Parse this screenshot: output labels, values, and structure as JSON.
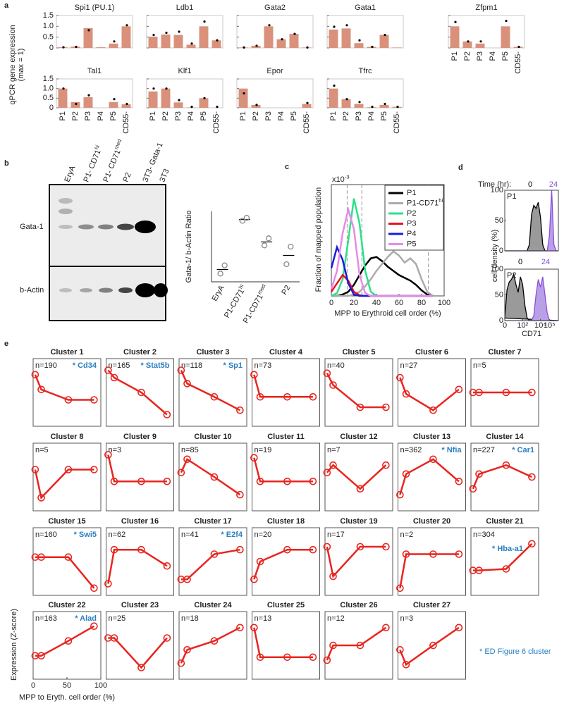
{
  "panel_labels": [
    "a",
    "b",
    "c",
    "d",
    "e"
  ],
  "blot": {
    "lanes": [
      "EryA",
      {
        "text": "P1- CD71",
        "sup": "hi"
      },
      {
        "text": "P1- CD71",
        "sup": "med"
      },
      "P2",
      "3T3- Gata-1",
      "3T3"
    ],
    "rows": [
      "Gata-1",
      "b-Actin"
    ]
  },
  "chart_data": [
    {
      "type": "bar",
      "ylabel": [
        "qPCR gene expression",
        "(max = 1)"
      ],
      "color": "#d9917c",
      "point_color": "#000000",
      "categories": [
        "P1",
        "P2",
        "P3",
        "P4",
        "P5",
        "CD55-"
      ],
      "ylim": [
        0,
        1.5
      ],
      "yticks": [
        0,
        0.5,
        {
          "value": 1,
          "label": "1.0"
        },
        1.5
      ],
      "panels": [
        {
          "title": "Spi1 (PU.1)",
          "values": [
            0.03,
            0.06,
            0.92,
            0.03,
            0.2,
            1.0
          ],
          "points": [
            0.03,
            0.05,
            0.82,
            null,
            0.3,
            1.05
          ]
        },
        {
          "title": "Ldb1",
          "values": [
            0.52,
            0.62,
            0.6,
            0.15,
            1.0,
            0.35
          ],
          "points": [
            0.6,
            0.7,
            0.75,
            0.2,
            1.22,
            0.35
          ]
        },
        {
          "title": "Gata2",
          "values": [
            0.02,
            0.1,
            1.0,
            0.4,
            0.65,
            0.02
          ],
          "points": [
            0.02,
            0.1,
            1.05,
            0.4,
            0.65,
            0.02
          ]
        },
        {
          "title": "Gata1",
          "values": [
            0.85,
            0.9,
            0.22,
            0.05,
            0.6,
            0.02
          ],
          "points": [
            0.98,
            1.05,
            0.35,
            0.05,
            0.6,
            null
          ]
        },
        {
          "title": "Zfpm1",
          "values": [
            1.0,
            0.3,
            0.2,
            0,
            1.0,
            0.05
          ],
          "points": [
            1.2,
            0.3,
            0.3,
            null,
            1.25,
            0.05
          ]
        },
        {
          "title": "Tal1",
          "values": [
            1.0,
            0.3,
            0.55,
            0,
            0.3,
            0.18
          ],
          "points": [
            1.0,
            0.2,
            0.65,
            null,
            0.45,
            0.2
          ]
        },
        {
          "title": "Klf1",
          "values": [
            0.85,
            1.0,
            0.28,
            0.02,
            0.5,
            0
          ],
          "points": [
            1.0,
            1.0,
            0.4,
            0.05,
            0.5,
            0.05
          ]
        },
        {
          "title": "Epor",
          "values": [
            1.0,
            0.15,
            0,
            0,
            0,
            0.2
          ],
          "points": [
            0.75,
            0.15,
            null,
            null,
            null,
            0.25
          ]
        },
        {
          "title": "Tfrc",
          "values": [
            1.0,
            0.45,
            0.2,
            0.03,
            0.15,
            0.05
          ],
          "points": [
            1.15,
            0.45,
            0.3,
            0.05,
            0.2,
            0.05
          ]
        }
      ]
    },
    {
      "type": "scatter",
      "ylabel": "Gata-1/ b-Actin Ratio",
      "categories": [
        "EryA",
        {
          "text": "P1-CD71",
          "sup": "hi"
        },
        {
          "text": "P1-CD71",
          "sup": "med"
        },
        "P2"
      ],
      "values": [
        0.55,
        4.8,
        2.9,
        1.75
      ],
      "points": [
        [
          0.2,
          0.9
        ],
        [
          4.7,
          4.95
        ],
        [
          2.6,
          3.2
        ],
        [
          1.0,
          2.5
        ]
      ],
      "ylim": [
        -0.5,
        5.5
      ],
      "color": "#888888"
    },
    {
      "type": "line",
      "ylabel": "Fraction of mapped population",
      "xlabel": "MPP to Erythroid cell order (%)",
      "y_multiplier": {
        "text": "x10",
        "sup": "-3"
      },
      "x": [
        0,
        5,
        10,
        15,
        20,
        25,
        30,
        35,
        40,
        45,
        50,
        55,
        60,
        65,
        70,
        75,
        80,
        85,
        90
      ],
      "xlim": [
        0,
        100
      ],
      "xticks": [
        0,
        20,
        40,
        60,
        80,
        100
      ],
      "ylim": [
        0,
        8
      ],
      "vlines": [
        14,
        27,
        86
      ],
      "series": [
        {
          "name": "P1",
          "color": "#000000",
          "values": [
            0,
            0,
            0.1,
            0.3,
            0.8,
            1.5,
            2.2,
            2.7,
            2.8,
            2.5,
            2.1,
            1.8,
            1.5,
            1.3,
            1.1,
            0.8,
            0.4,
            0.1,
            0
          ]
        },
        {
          "name": {
            "text": "P1-CD71",
            "sup": "hi"
          },
          "color": "#aaaaaa",
          "values": [
            0,
            0,
            0,
            0,
            0.1,
            0.3,
            0.7,
            1.2,
            1.8,
            2.3,
            2.8,
            3.2,
            2.9,
            2.4,
            2.7,
            2.3,
            1.2,
            0.3,
            0
          ]
        },
        {
          "name": "P2",
          "color": "#2de08a",
          "values": [
            0,
            0.2,
            1.2,
            4,
            7,
            5.2,
            1.8,
            0.3,
            0,
            0,
            0,
            0,
            0,
            0,
            0,
            0,
            0,
            0,
            0
          ]
        },
        {
          "name": "P3",
          "color": "#e8141e",
          "values": [
            0.3,
            0.9,
            1.5,
            1.1,
            0.3,
            0.05,
            0,
            0,
            0,
            0,
            0,
            0,
            0,
            0,
            0,
            0,
            0,
            0,
            0
          ]
        },
        {
          "name": "P4",
          "color": "#1a1ae0",
          "values": [
            2,
            3.5,
            2.6,
            0.9,
            0.1,
            0,
            0,
            0,
            0,
            0,
            0,
            0,
            0,
            0,
            0,
            0,
            0,
            0,
            0
          ]
        },
        {
          "name": "P5",
          "color": "#e68be6",
          "values": [
            0.5,
            1.8,
            4.5,
            6.2,
            4.8,
            1.5,
            0.2,
            0,
            0,
            0,
            0,
            0,
            0,
            0,
            0,
            0,
            0,
            0,
            0
          ]
        }
      ]
    },
    {
      "type": "area",
      "legend_title": "Time (hr):",
      "ylabel": "cell density (%)",
      "xlabel": "CD71",
      "x": [
        0,
        0.25,
        0.5,
        0.75,
        1,
        1.25,
        1.5,
        1.75,
        2,
        2.25,
        2.5,
        2.75,
        3,
        3.25,
        3.5,
        3.75,
        4,
        4.25,
        4.5,
        4.75,
        5,
        5.25,
        5.5,
        5.75,
        6
      ],
      "xlim": [
        0,
        6
      ],
      "xticks": [
        {
          "value": 0,
          "label": "0"
        },
        {
          "value": 2,
          "label": "10²"
        },
        {
          "value": 4,
          "label": "10⁴"
        },
        {
          "value": 5,
          "label": "10⁵"
        }
      ],
      "ylim": [
        0,
        100
      ],
      "yticks": [
        0,
        50,
        100
      ],
      "series": [
        {
          "name": "0",
          "color": "#000000",
          "fill": "#9a9a9a"
        },
        {
          "name": "24",
          "color": "#8a4fd8",
          "fill": "#b9a0e6"
        }
      ],
      "panels": [
        {
          "label": "P1",
          "values": [
            [
              0,
              0,
              0,
              0,
              0,
              0,
              0,
              0,
              0,
              0,
              0,
              10,
              60,
              75,
              70,
              80,
              55,
              10,
              0,
              0,
              0,
              0,
              0,
              0,
              0
            ],
            [
              0,
              0,
              0,
              0,
              0,
              0,
              0,
              0,
              0,
              0,
              0,
              0,
              0,
              0,
              0,
              0,
              0,
              0,
              0,
              0,
              25,
              100,
              10,
              0,
              0
            ]
          ]
        },
        {
          "label": "P2",
          "values": [
            [
              5,
              60,
              75,
              80,
              90,
              70,
              55,
              85,
              70,
              30,
              5,
              0,
              0,
              0,
              0,
              0,
              0,
              0,
              0,
              0,
              0,
              0,
              0,
              0,
              0
            ],
            [
              0,
              0,
              0,
              0,
              0,
              0,
              0,
              0,
              0,
              0,
              0,
              0,
              0,
              10,
              50,
              80,
              65,
              85,
              50,
              15,
              0,
              0,
              0,
              0,
              0
            ]
          ]
        }
      ]
    },
    {
      "type": "line",
      "ylabel": "Expression (Z-score)",
      "xlabel": "MPP to Eryth. cell order (%)",
      "note": "* ED Figure 6 cluster",
      "color": "#e8251f",
      "gene_color": "#2a7fc0",
      "x": [
        3,
        12,
        52,
        90
      ],
      "xlim": [
        0,
        100
      ],
      "xticks": [
        0,
        50,
        100
      ],
      "ylim": [
        -2,
        2
      ],
      "panels": [
        {
          "title": "Cluster 1",
          "n": "n=190",
          "gene": "* Cd34",
          "values": [
            1.2,
            0.2,
            -0.5,
            -0.5
          ]
        },
        {
          "title": "Cluster 2",
          "n": "n=165",
          "gene": "* Stat5b",
          "values": [
            1.5,
            1.0,
            0.0,
            -1.5
          ]
        },
        {
          "title": "Cluster 3",
          "n": "n=118",
          "gene": "* Sp1",
          "values": [
            1.5,
            0.6,
            -0.3,
            -1.2
          ]
        },
        {
          "title": "Cluster 4",
          "n": "n=73",
          "values": [
            1.2,
            -0.3,
            -0.3,
            -0.3
          ]
        },
        {
          "title": "Cluster 5",
          "n": "n=40",
          "values": [
            1.3,
            0.5,
            -1.0,
            -1.0
          ]
        },
        {
          "title": "Cluster 6",
          "n": "n=27",
          "values": [
            1.0,
            -0.1,
            -1.2,
            0.2
          ]
        },
        {
          "title": "Cluster 7",
          "n": "n=5",
          "values": [
            0,
            0,
            0,
            0
          ]
        },
        {
          "title": "Cluster 8",
          "n": "n=5",
          "values": [
            0.5,
            -1.4,
            0.5,
            0.5
          ]
        },
        {
          "title": "Cluster 9",
          "n": "n=3",
          "values": [
            1.5,
            -0.3,
            -0.3,
            -0.3
          ]
        },
        {
          "title": "Cluster 10",
          "n": "n=85",
          "values": [
            0.3,
            1.2,
            0.0,
            -1.2
          ]
        },
        {
          "title": "Cluster 11",
          "n": "n=19",
          "values": [
            1.3,
            -0.3,
            -0.3,
            -0.3
          ]
        },
        {
          "title": "Cluster 12",
          "n": "n=7",
          "values": [
            0.3,
            0.8,
            -0.8,
            0.8
          ]
        },
        {
          "title": "Cluster 13",
          "n": "n=362",
          "gene": "* Nfia",
          "values": [
            -1.2,
            0.2,
            1.2,
            -0.3
          ]
        },
        {
          "title": "Cluster 14",
          "n": "n=227",
          "gene": "* Car1",
          "values": [
            -0.8,
            0.2,
            0.8,
            0
          ]
        },
        {
          "title": "Cluster 15",
          "n": "n=160",
          "gene": "* Swi5",
          "values": [
            0.3,
            0.3,
            0.3,
            -1.8
          ]
        },
        {
          "title": "Cluster 16",
          "n": "n=62",
          "values": [
            -1.5,
            0.8,
            0.8,
            -0.3
          ]
        },
        {
          "title": "Cluster 17",
          "n": "n=41",
          "gene": "* E2f4",
          "values": [
            -1.2,
            -1.2,
            0.5,
            0.8
          ]
        },
        {
          "title": "Cluster 18",
          "n": "n=20",
          "values": [
            -1.2,
            0.0,
            0.8,
            0.8
          ]
        },
        {
          "title": "Cluster 19",
          "n": "n=17",
          "values": [
            1.0,
            -1.0,
            1.0,
            1.0
          ]
        },
        {
          "title": "Cluster 20",
          "n": "n=2",
          "values": [
            -1.8,
            0.5,
            0.5,
            0.5
          ]
        },
        {
          "title": "Cluster 21",
          "n": "n=304",
          "gene": "* Hba-a1",
          "values": [
            -0.6,
            -0.6,
            -0.5,
            1.2
          ]
        },
        {
          "title": "Cluster 22",
          "n": "n=163",
          "gene": "* Alad",
          "values": [
            -0.7,
            -0.7,
            0.3,
            1.3
          ]
        },
        {
          "title": "Cluster 23",
          "n": "n=25",
          "values": [
            0.5,
            0.5,
            -1.5,
            0.5
          ]
        },
        {
          "title": "Cluster 24",
          "n": "n=18",
          "values": [
            -1.2,
            -0.3,
            0.3,
            1.2
          ]
        },
        {
          "title": "Cluster 25",
          "n": "n=13",
          "values": [
            1.2,
            -0.8,
            -0.8,
            -0.8
          ]
        },
        {
          "title": "Cluster 26",
          "n": "n=12",
          "values": [
            -1.0,
            0.0,
            0.0,
            1.2
          ]
        },
        {
          "title": "Cluster 27",
          "n": "n=3",
          "values": [
            -0.3,
            -1.3,
            0.0,
            1.2
          ]
        }
      ]
    }
  ]
}
